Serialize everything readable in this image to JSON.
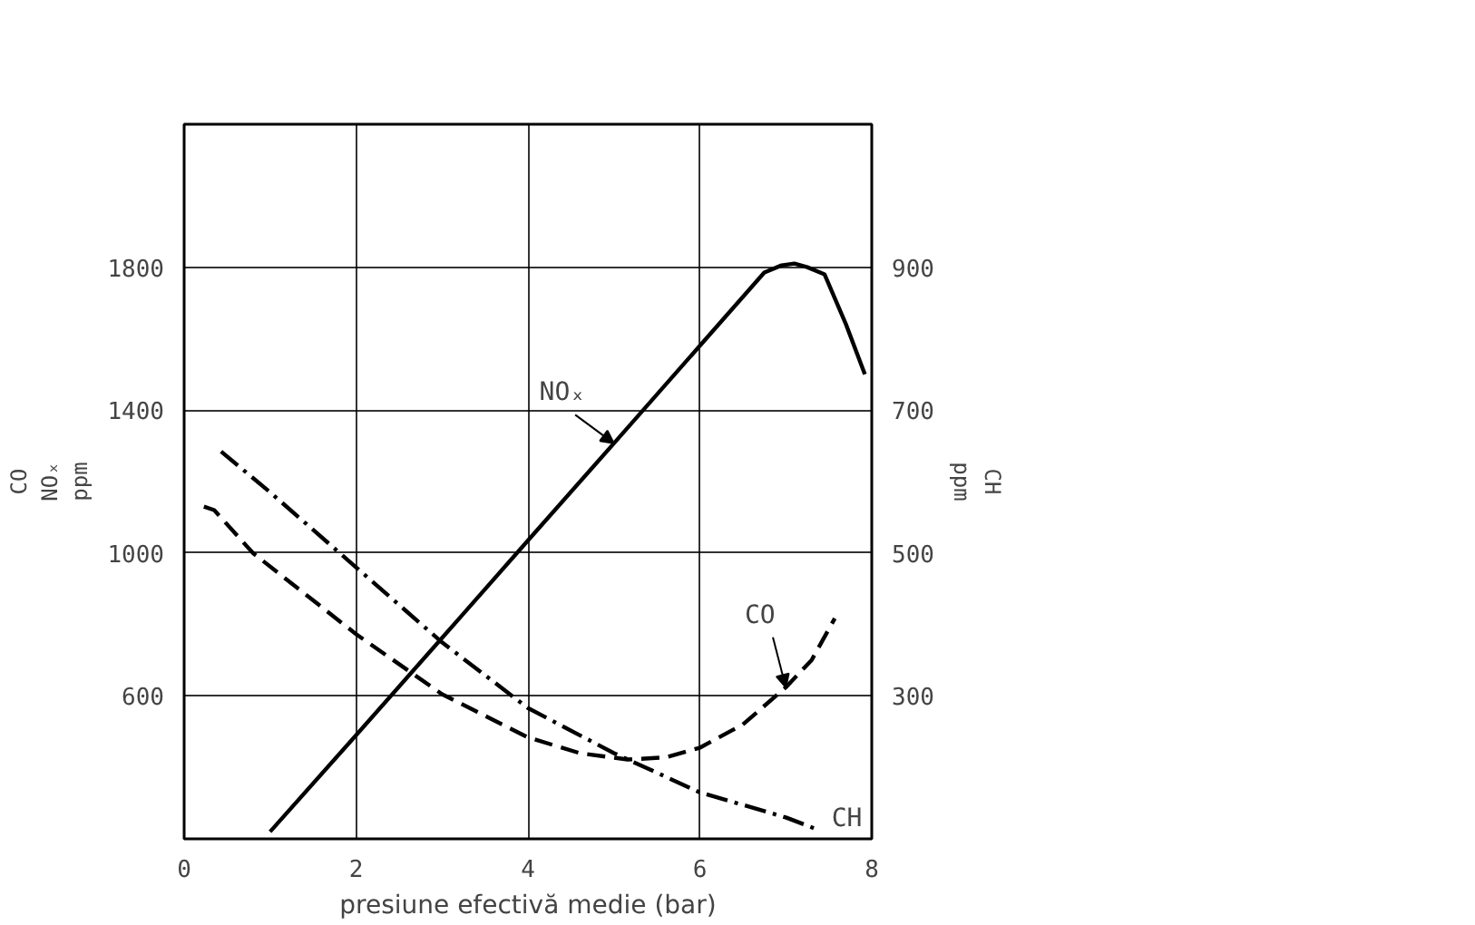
{
  "chart_data": {
    "type": "line",
    "xlabel": "presiune efectivă medie (bar)",
    "ylabel": "CO\nNOₓ\nppm",
    "y2label": "CH\nppm",
    "xlim": [
      0,
      8
    ],
    "xticks": [
      0,
      2,
      4,
      6,
      8
    ],
    "ylim": [
      200,
      2200
    ],
    "yticks": [
      600,
      1000,
      1400,
      1800
    ],
    "y2lim": [
      100,
      1100
    ],
    "y2ticks": [
      300,
      500,
      700,
      900
    ],
    "grid": true,
    "marker": "none",
    "series": [
      {
        "name": "NOₓ",
        "color": "#000000",
        "line_style": "solid",
        "x": [
          1.0,
          2,
          3,
          4,
          5,
          6,
          6.75,
          6.95,
          7.1,
          7.25,
          7.45,
          7.7,
          7.92
        ],
        "values": [
          220,
          490,
          762,
          1035,
          1307,
          1580,
          1785,
          1805,
          1810,
          1800,
          1780,
          1640,
          1500
        ]
      },
      {
        "name": "CO",
        "color": "#000000",
        "line_style": "dashed",
        "x": [
          0.23,
          0.35,
          0.8,
          2,
          3,
          4,
          4.6,
          5.16,
          5.6,
          6,
          6.5,
          7,
          7.3,
          7.57
        ],
        "values": [
          1130,
          1120,
          1000,
          773,
          605,
          484,
          440,
          422,
          428,
          455,
          520,
          624,
          700,
          817
        ]
      },
      {
        "name": "CH",
        "color": "#000000",
        "line_style": "dashdot",
        "axis": "y2",
        "x": [
          0.43,
          1,
          2,
          3,
          4,
          5,
          6,
          7,
          7.39
        ],
        "values": [
          642,
          585,
          480,
          375,
          283,
          220,
          165,
          130,
          112
        ]
      }
    ]
  }
}
